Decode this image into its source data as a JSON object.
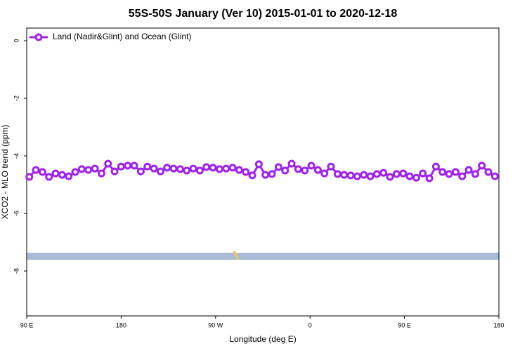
{
  "chart_data": {
    "type": "line",
    "title": "55S-50S January (Ver 10)   2015-01-01 to 2020-12-18",
    "x_label": "Longitude (deg E)",
    "y_label": "XCO2 - MLO trend (ppm)",
    "xlim": [
      90,
      540
    ],
    "ylim": [
      -9.56,
      0.44
    ],
    "xticks": [
      {
        "value": 90,
        "label": "90 E"
      },
      180,
      {
        "value": 270,
        "label": "90 W"
      },
      {
        "value": 360,
        "label": "0"
      },
      {
        "value": 450,
        "label": "90 E"
      },
      {
        "value": 540,
        "label": "180"
      }
    ],
    "yticks": [
      0,
      -2,
      -4,
      -6,
      -8
    ],
    "legend": "top-left",
    "x": [
      92.5,
      98.75,
      105,
      111.25,
      117.5,
      123.75,
      130,
      136.25,
      142.5,
      148.75,
      155,
      161.25,
      167.5,
      173.75,
      180,
      186.25,
      192.5,
      198.75,
      205,
      211.25,
      217.5,
      223.75,
      230,
      236.25,
      242.5,
      248.75,
      255,
      261.25,
      267.5,
      273.75,
      280,
      286.25,
      292.5,
      298.75,
      305,
      311.25,
      317.5,
      323.75,
      330,
      336.25,
      342.5,
      348.75,
      355,
      361.25,
      367.5,
      373.75,
      380,
      386.25,
      392.5,
      398.75,
      405,
      411.25,
      417.5,
      423.75,
      430,
      436.25,
      442.5,
      448.75,
      455,
      461.25,
      467.5,
      473.75,
      480,
      486.25,
      492.5,
      498.75,
      505,
      511.25,
      517.5,
      523.75,
      530,
      536.25
    ],
    "series": [
      {
        "name": "Land (Nadir&Glint) and Ocean (Glint)",
        "color": "#a020f0",
        "values": [
          -4.73,
          -4.49,
          -4.56,
          -4.73,
          -4.61,
          -4.66,
          -4.71,
          -4.56,
          -4.46,
          -4.49,
          -4.44,
          -4.61,
          -4.27,
          -4.54,
          -4.37,
          -4.34,
          -4.34,
          -4.54,
          -4.37,
          -4.44,
          -4.54,
          -4.41,
          -4.44,
          -4.46,
          -4.51,
          -4.44,
          -4.51,
          -4.39,
          -4.41,
          -4.46,
          -4.44,
          -4.41,
          -4.49,
          -4.56,
          -4.68,
          -4.29,
          -4.66,
          -4.63,
          -4.39,
          -4.51,
          -4.27,
          -4.46,
          -4.51,
          -4.34,
          -4.49,
          -4.61,
          -4.37,
          -4.63,
          -4.66,
          -4.68,
          -4.71,
          -4.66,
          -4.71,
          -4.63,
          -4.59,
          -4.73,
          -4.63,
          -4.61,
          -4.71,
          -4.76,
          -4.61,
          -4.78,
          -4.37,
          -4.56,
          -4.63,
          -4.56,
          -4.71,
          -4.49,
          -4.63,
          -4.34,
          -4.56,
          -4.71
        ]
      }
    ]
  }
}
